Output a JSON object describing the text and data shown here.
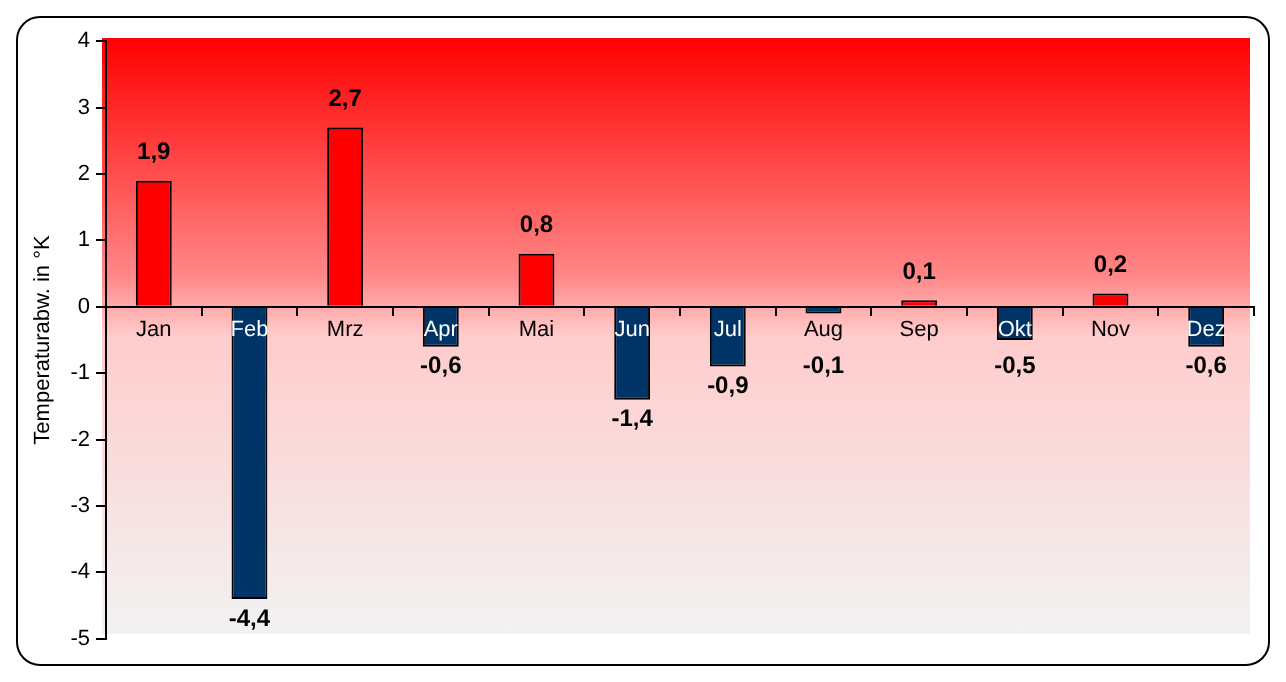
{
  "chart_data": {
    "type": "bar",
    "ylabel": "Temperaturabw. in °K",
    "categories": [
      "Jan",
      "Feb",
      "Mrz",
      "Apr",
      "Mai",
      "Jun",
      "Jul",
      "Aug",
      "Sep",
      "Okt",
      "Nov",
      "Dez"
    ],
    "values": [
      1.9,
      -4.4,
      2.7,
      -0.6,
      0.8,
      -1.4,
      -0.9,
      -0.1,
      0.1,
      -0.5,
      0.2,
      -0.6
    ],
    "colors": [
      "#ff0000",
      "#003366",
      "#ff0000",
      "#003366",
      "#ff0000",
      "#003366",
      "#003366",
      "#003366",
      "#ff0000",
      "#003366",
      "#ff0000",
      "#003366"
    ],
    "value_labels": [
      "1,9",
      "-4,4",
      "2,7",
      "-0,6",
      "0,8",
      "-1,4",
      "-0,9",
      "-0,1",
      "0,1",
      "-0,5",
      "0,2",
      "-0,6"
    ],
    "ylim": [
      -5,
      4
    ],
    "yticks": [
      -5,
      -4,
      -3,
      -2,
      -1,
      0,
      1,
      2,
      3,
      4
    ],
    "grid": false,
    "legend": false
  }
}
